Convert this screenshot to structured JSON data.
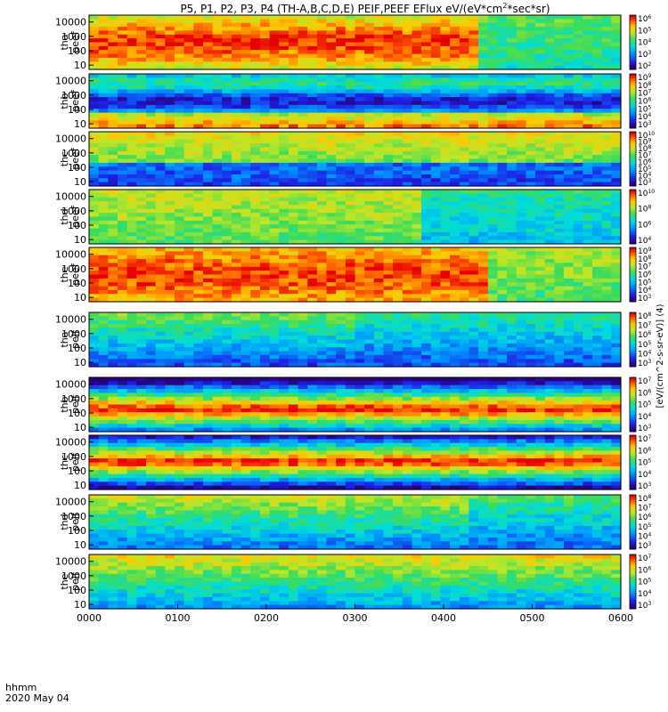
{
  "title": "P5, P1, P2, P3, P4 (TH-A,B,C,D,E) PEIF,PEEF EFlux eV/(eV*cm",
  "title_sup": "2",
  "title_tail": "*sec*sr)",
  "footer": {
    "hhmm": "hhmm",
    "date": "2020 May 04"
  },
  "colorbar_label": "[eV/(cm^2-s-sr-eV)] (4)",
  "chart_data": {
    "type": "heatmap",
    "x_tick_labels": [
      "0000",
      "0100",
      "0200",
      "0300",
      "0400",
      "0500",
      "0600"
    ],
    "x_range_hours": [
      0,
      6
    ],
    "y_scale": "log",
    "y_tick_labels": [
      "10",
      "100",
      "1000",
      "10000"
    ],
    "colormap": "rainbow (blue low, red high)",
    "panels": [
      {
        "probe": "tha",
        "species": "peef",
        "cb_ticks": [
          "10^6",
          "10^5",
          "10^4",
          "10^3",
          "10^2"
        ],
        "y_range": [
          5,
          30000
        ]
      },
      {
        "probe": "thb",
        "species": "peef",
        "cb_ticks": [
          "10^9",
          "10^8",
          "10^7",
          "10^6",
          "10^5",
          "10^4",
          "10^3"
        ],
        "y_range": [
          5,
          30000
        ]
      },
      {
        "probe": "thc",
        "species": "peef",
        "cb_ticks": [
          "10^10",
          "10^9",
          "10^8",
          "10^7",
          "10^6",
          "10^5",
          "10^4",
          "10^3"
        ],
        "y_range": [
          5,
          30000
        ]
      },
      {
        "probe": "thd",
        "species": "peef",
        "cb_ticks": [
          "10^10",
          "10^8",
          "10^6",
          "10^4"
        ],
        "y_range": [
          5,
          30000
        ]
      },
      {
        "probe": "the",
        "species": "peef",
        "cb_ticks": [
          "10^9",
          "10^8",
          "10^7",
          "10^6",
          "10^5",
          "10^4",
          "10^3"
        ],
        "y_range": [
          5,
          30000
        ]
      },
      {
        "probe": "tha",
        "species": "peif",
        "cb_ticks": [
          "10^8",
          "10^7",
          "10^6",
          "10^5",
          "10^4",
          "10^3"
        ],
        "y_range": [
          5,
          30000
        ]
      },
      {
        "probe": "thb",
        "species": "peif",
        "cb_ticks": [
          "10^7",
          "10^6",
          "10^5",
          "10^4",
          "10^3"
        ],
        "y_range": [
          5,
          30000
        ]
      },
      {
        "probe": "thc",
        "species": "peif",
        "cb_ticks": [
          "10^7",
          "10^6",
          "10^5",
          "10^4",
          "10^3"
        ],
        "y_range": [
          5,
          30000
        ]
      },
      {
        "probe": "thd",
        "species": "peif",
        "cb_ticks": [
          "10^8",
          "10^7",
          "10^6",
          "10^5",
          "10^4",
          "10^3"
        ],
        "y_range": [
          5,
          30000
        ]
      },
      {
        "probe": "the",
        "species": "peif",
        "cb_ticks": [
          "10^7",
          "10^6",
          "10^5",
          "10^4",
          "10^3"
        ],
        "y_range": [
          5,
          30000
        ]
      }
    ]
  }
}
